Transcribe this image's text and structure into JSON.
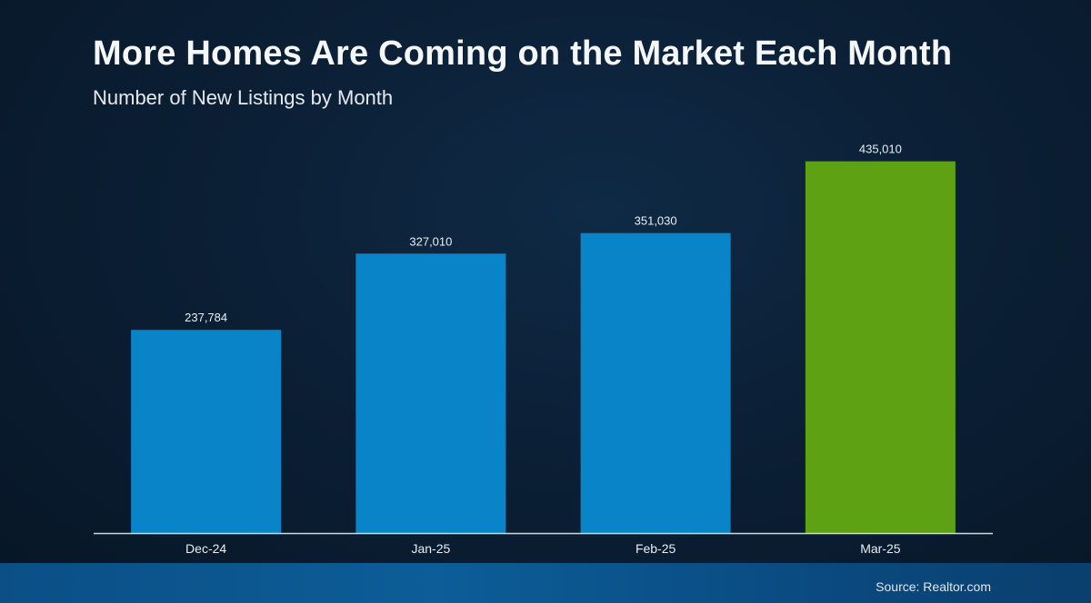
{
  "chart_data": {
    "type": "bar",
    "title": "More Homes Are Coming on the Market Each Month",
    "subtitle": "Number of New Listings by Month",
    "categories": [
      "Dec-24",
      "Jan-25",
      "Feb-25",
      "Mar-25"
    ],
    "values": [
      237784,
      327010,
      351030,
      435010
    ],
    "value_labels": [
      "237,784",
      "327,010",
      "351,030",
      "435,010"
    ],
    "highlight_index": 3,
    "ylim": [
      0,
      475000
    ],
    "grid": false,
    "colors": {
      "bar": "#0a84c8",
      "highlight": "#5ea214",
      "axis": "#cfd8e0"
    }
  },
  "source": "Source: Realtor.com"
}
